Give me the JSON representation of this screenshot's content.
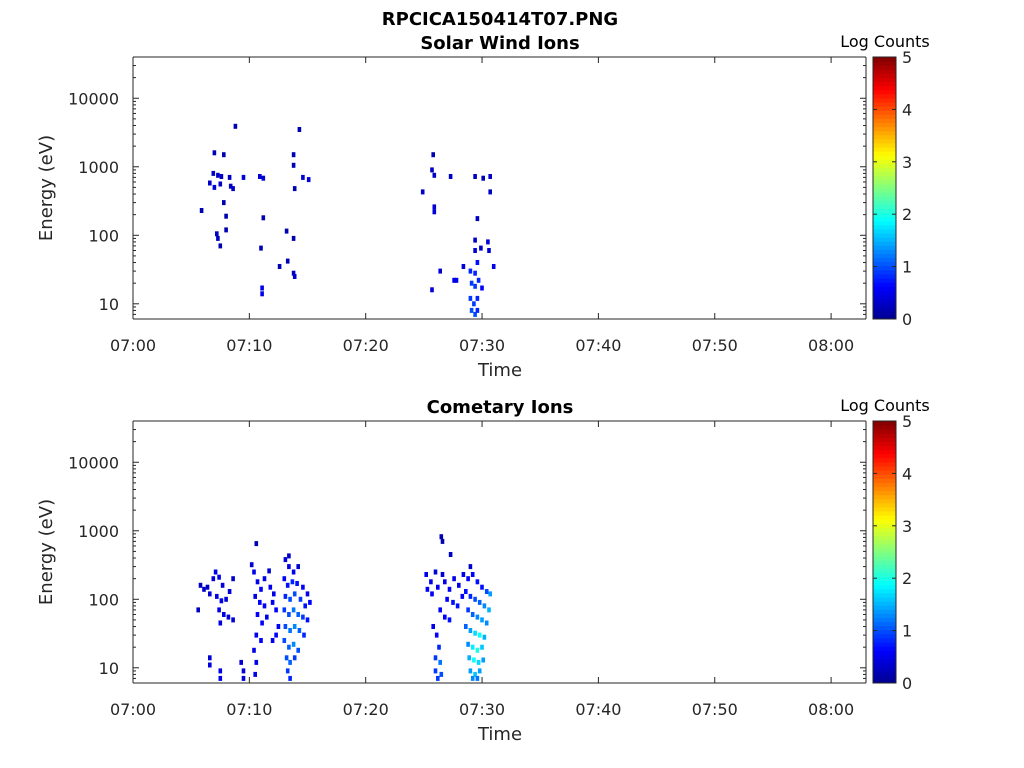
{
  "figure_title": "RPCICA150414T07.PNG",
  "colorscale": [
    "#00008f",
    "#0000ff",
    "#0080ff",
    "#00ffff",
    "#80ff80",
    "#ffff00",
    "#ff8000",
    "#ff0000",
    "#800000"
  ],
  "chart_data": [
    {
      "type": "heatmap",
      "title": "Solar Wind Ions",
      "xlabel": "Time",
      "ylabel": "Energy (eV)",
      "x_range_minutes": [
        0,
        63
      ],
      "x_ticks": [
        "07:00",
        "07:10",
        "07:20",
        "07:30",
        "07:40",
        "07:50",
        "08:00"
      ],
      "y_scale": "log",
      "y_range": [
        6,
        40000
      ],
      "y_ticks": [
        "10",
        "100",
        "1000",
        "10000"
      ],
      "colorbar": {
        "label": "Log Counts",
        "range": [
          0,
          5
        ],
        "ticks": [
          "0",
          "1",
          "2",
          "3",
          "4",
          "5"
        ]
      },
      "cells": [
        [
          8.8,
          3900,
          0.2
        ],
        [
          14.3,
          3500,
          0.2
        ],
        [
          7.0,
          1600,
          0.2
        ],
        [
          7.8,
          1500,
          0.2
        ],
        [
          13.8,
          1500,
          0.2
        ],
        [
          13.8,
          1050,
          0.2
        ],
        [
          6.9,
          800,
          0.3
        ],
        [
          7.3,
          750,
          0.3
        ],
        [
          7.6,
          720,
          0.3
        ],
        [
          8.3,
          700,
          0.3
        ],
        [
          9.5,
          700,
          0.4
        ],
        [
          10.9,
          720,
          0.4
        ],
        [
          11.2,
          680,
          0.4
        ],
        [
          14.6,
          700,
          0.4
        ],
        [
          15.1,
          650,
          0.4
        ],
        [
          6.6,
          580,
          0.3
        ],
        [
          7.5,
          560,
          0.3
        ],
        [
          7.0,
          500,
          0.4
        ],
        [
          8.4,
          520,
          0.3
        ],
        [
          8.6,
          480,
          0.3
        ],
        [
          13.9,
          480,
          0.2
        ],
        [
          7.8,
          300,
          0.2
        ],
        [
          5.9,
          230,
          0.2
        ],
        [
          8.0,
          190,
          0.2
        ],
        [
          11.2,
          180,
          0.2
        ],
        [
          7.2,
          105,
          0.3
        ],
        [
          7.3,
          90,
          0.3
        ],
        [
          7.5,
          70,
          0.2
        ],
        [
          8.0,
          120,
          0.2
        ],
        [
          13.2,
          115,
          0.2
        ],
        [
          13.8,
          90,
          0.2
        ],
        [
          11.0,
          65,
          0.2
        ],
        [
          13.3,
          42,
          0.2
        ],
        [
          12.6,
          35,
          0.2
        ],
        [
          13.8,
          28,
          0.3
        ],
        [
          13.9,
          25,
          0.3
        ],
        [
          11.1,
          17,
          0.5
        ],
        [
          11.1,
          14,
          0.5
        ],
        [
          25.8,
          1500,
          0.2
        ],
        [
          25.7,
          900,
          0.3
        ],
        [
          25.9,
          750,
          0.3
        ],
        [
          27.3,
          720,
          0.3
        ],
        [
          29.4,
          720,
          0.3
        ],
        [
          30.1,
          680,
          0.2
        ],
        [
          30.7,
          720,
          0.3
        ],
        [
          24.9,
          430,
          0.3
        ],
        [
          30.7,
          430,
          0.3
        ],
        [
          25.9,
          260,
          0.4
        ],
        [
          25.9,
          220,
          0.4
        ],
        [
          29.6,
          175,
          0.3
        ],
        [
          29.4,
          85,
          0.3
        ],
        [
          29.4,
          60,
          0.4
        ],
        [
          29.9,
          65,
          0.3
        ],
        [
          30.5,
          80,
          0.4
        ],
        [
          30.6,
          60,
          0.4
        ],
        [
          29.6,
          40,
          0.7
        ],
        [
          31.0,
          35,
          0.5
        ],
        [
          29.0,
          30,
          0.8
        ],
        [
          29.4,
          28,
          0.8
        ],
        [
          28.4,
          35,
          0.4
        ],
        [
          26.4,
          30,
          0.4
        ],
        [
          27.6,
          22,
          0.5
        ],
        [
          27.8,
          22,
          0.5
        ],
        [
          25.7,
          16,
          0.4
        ],
        [
          29.1,
          20,
          0.9
        ],
        [
          29.4,
          18,
          0.9
        ],
        [
          29.7,
          22,
          0.8
        ],
        [
          30.0,
          17,
          0.6
        ],
        [
          29.0,
          12,
          0.9
        ],
        [
          29.3,
          10,
          0.9
        ],
        [
          29.6,
          12,
          0.8
        ],
        [
          29.1,
          8,
          1.0
        ],
        [
          29.4,
          7,
          1.0
        ],
        [
          29.6,
          8,
          0.8
        ]
      ]
    },
    {
      "type": "heatmap",
      "title": "Cometary Ions",
      "xlabel": "Time",
      "ylabel": "Energy (eV)",
      "x_range_minutes": [
        0,
        63
      ],
      "x_ticks": [
        "07:00",
        "07:10",
        "07:20",
        "07:30",
        "07:40",
        "07:50",
        "08:00"
      ],
      "y_scale": "log",
      "y_range": [
        6,
        40000
      ],
      "y_ticks": [
        "10",
        "100",
        "1000",
        "10000"
      ],
      "colorbar": {
        "label": "Log Counts",
        "range": [
          0,
          5
        ],
        "ticks": [
          "0",
          "1",
          "2",
          "3",
          "4",
          "5"
        ]
      },
      "cells": [
        [
          10.6,
          650,
          0.2
        ],
        [
          13.4,
          430,
          0.3
        ],
        [
          26.5,
          820,
          0.2
        ],
        [
          26.6,
          700,
          0.2
        ],
        [
          27.3,
          450,
          0.3
        ],
        [
          29.0,
          300,
          0.3
        ],
        [
          5.8,
          160,
          0.3
        ],
        [
          6.1,
          140,
          0.3
        ],
        [
          6.4,
          150,
          0.3
        ],
        [
          6.9,
          200,
          0.4
        ],
        [
          7.1,
          250,
          0.5
        ],
        [
          7.4,
          210,
          0.5
        ],
        [
          7.7,
          160,
          0.4
        ],
        [
          6.6,
          120,
          0.4
        ],
        [
          7.2,
          110,
          0.5
        ],
        [
          7.6,
          95,
          0.5
        ],
        [
          8.0,
          100,
          0.4
        ],
        [
          8.3,
          130,
          0.4
        ],
        [
          8.6,
          200,
          0.3
        ],
        [
          7.4,
          70,
          0.5
        ],
        [
          7.8,
          60,
          0.5
        ],
        [
          8.2,
          55,
          0.4
        ],
        [
          8.6,
          50,
          0.4
        ],
        [
          5.6,
          70,
          0.3
        ],
        [
          7.5,
          45,
          0.4
        ],
        [
          6.6,
          14,
          0.4
        ],
        [
          6.6,
          11,
          0.4
        ],
        [
          7.5,
          9,
          0.5
        ],
        [
          7.5,
          7,
          0.5
        ],
        [
          9.3,
          12,
          0.4
        ],
        [
          9.5,
          9,
          0.4
        ],
        [
          9.5,
          7,
          0.4
        ],
        [
          10.2,
          320,
          0.4
        ],
        [
          10.4,
          250,
          0.5
        ],
        [
          10.7,
          180,
          0.5
        ],
        [
          11.0,
          140,
          0.6
        ],
        [
          11.3,
          200,
          0.5
        ],
        [
          11.7,
          260,
          0.4
        ],
        [
          10.5,
          110,
          0.5
        ],
        [
          10.9,
          90,
          0.6
        ],
        [
          11.3,
          80,
          0.6
        ],
        [
          11.8,
          150,
          0.5
        ],
        [
          12.1,
          120,
          0.5
        ],
        [
          10.7,
          60,
          0.6
        ],
        [
          11.1,
          45,
          0.6
        ],
        [
          11.5,
          55,
          0.5
        ],
        [
          12.0,
          90,
          0.5
        ],
        [
          12.3,
          70,
          0.6
        ],
        [
          10.6,
          30,
          0.5
        ],
        [
          11.0,
          25,
          0.6
        ],
        [
          12.5,
          40,
          0.6
        ],
        [
          10.4,
          18,
          0.5
        ],
        [
          10.6,
          12,
          0.5
        ],
        [
          10.5,
          8,
          0.5
        ],
        [
          12.0,
          25,
          0.5
        ],
        [
          12.3,
          30,
          0.6
        ],
        [
          13.1,
          380,
          0.4
        ],
        [
          13.4,
          300,
          0.5
        ],
        [
          13.8,
          250,
          0.5
        ],
        [
          14.2,
          300,
          0.4
        ],
        [
          13.0,
          200,
          0.6
        ],
        [
          13.3,
          160,
          0.7
        ],
        [
          13.7,
          180,
          0.8
        ],
        [
          14.1,
          170,
          0.7
        ],
        [
          14.6,
          150,
          0.6
        ],
        [
          15.0,
          120,
          0.5
        ],
        [
          13.1,
          110,
          0.8
        ],
        [
          13.5,
          100,
          1.0
        ],
        [
          13.9,
          120,
          1.0
        ],
        [
          14.4,
          100,
          0.9
        ],
        [
          14.8,
          80,
          0.7
        ],
        [
          15.2,
          90,
          0.6
        ],
        [
          13.0,
          70,
          0.9
        ],
        [
          13.4,
          60,
          1.0
        ],
        [
          13.8,
          70,
          1.2
        ],
        [
          14.2,
          60,
          1.1
        ],
        [
          14.6,
          55,
          0.9
        ],
        [
          15.0,
          50,
          0.7
        ],
        [
          13.1,
          40,
          1.0
        ],
        [
          13.5,
          35,
          1.2
        ],
        [
          13.9,
          40,
          1.3
        ],
        [
          14.3,
          35,
          1.1
        ],
        [
          14.7,
          30,
          0.8
        ],
        [
          13.0,
          25,
          1.0
        ],
        [
          13.4,
          20,
          1.1
        ],
        [
          13.8,
          22,
          1.3
        ],
        [
          14.2,
          18,
          1.0
        ],
        [
          13.2,
          14,
          1.0
        ],
        [
          13.5,
          12,
          1.1
        ],
        [
          13.9,
          14,
          0.9
        ],
        [
          13.3,
          9,
          0.9
        ],
        [
          13.5,
          7,
          0.8
        ],
        [
          25.2,
          230,
          0.5
        ],
        [
          25.6,
          180,
          0.5
        ],
        [
          26.0,
          250,
          0.4
        ],
        [
          25.3,
          140,
          0.6
        ],
        [
          25.7,
          120,
          0.6
        ],
        [
          26.2,
          150,
          0.5
        ],
        [
          26.6,
          230,
          0.4
        ],
        [
          26.8,
          180,
          0.5
        ],
        [
          27.2,
          140,
          0.6
        ],
        [
          27.6,
          200,
          0.5
        ],
        [
          28.0,
          160,
          0.5
        ],
        [
          27.0,
          100,
          0.6
        ],
        [
          27.5,
          90,
          0.7
        ],
        [
          27.9,
          80,
          0.7
        ],
        [
          28.3,
          110,
          0.6
        ],
        [
          26.4,
          70,
          0.6
        ],
        [
          26.8,
          55,
          0.6
        ],
        [
          27.2,
          50,
          0.7
        ],
        [
          25.8,
          40,
          0.5
        ],
        [
          26.1,
          30,
          0.6
        ],
        [
          26.3,
          20,
          0.8
        ],
        [
          26.0,
          14,
          0.9
        ],
        [
          26.4,
          12,
          1.2
        ],
        [
          26.0,
          9,
          0.9
        ],
        [
          26.5,
          8,
          1.0
        ],
        [
          26.2,
          7,
          0.9
        ],
        [
          28.4,
          230,
          0.5
        ],
        [
          28.8,
          200,
          0.6
        ],
        [
          29.2,
          230,
          0.6
        ],
        [
          29.6,
          180,
          0.7
        ],
        [
          30.0,
          150,
          0.7
        ],
        [
          30.4,
          130,
          1.0
        ],
        [
          30.7,
          120,
          1.4
        ],
        [
          28.6,
          130,
          0.7
        ],
        [
          29.0,
          110,
          0.8
        ],
        [
          29.4,
          100,
          1.0
        ],
        [
          29.8,
          90,
          1.1
        ],
        [
          30.2,
          80,
          1.3
        ],
        [
          30.6,
          70,
          1.5
        ],
        [
          28.8,
          70,
          0.9
        ],
        [
          29.2,
          60,
          1.1
        ],
        [
          29.6,
          55,
          1.3
        ],
        [
          30.0,
          50,
          1.4
        ],
        [
          30.4,
          45,
          1.3
        ],
        [
          28.6,
          40,
          1.1
        ],
        [
          29.0,
          35,
          1.4
        ],
        [
          29.4,
          32,
          1.7
        ],
        [
          29.8,
          30,
          1.9
        ],
        [
          30.2,
          28,
          1.5
        ],
        [
          28.8,
          22,
          1.3
        ],
        [
          29.2,
          20,
          1.8
        ],
        [
          29.6,
          18,
          2.0
        ],
        [
          30.0,
          20,
          1.6
        ],
        [
          28.9,
          14,
          1.5
        ],
        [
          29.3,
          13,
          1.9
        ],
        [
          29.7,
          12,
          1.7
        ],
        [
          30.1,
          13,
          1.4
        ],
        [
          29.0,
          9,
          1.4
        ],
        [
          29.4,
          8,
          1.6
        ],
        [
          29.8,
          9,
          1.4
        ],
        [
          29.2,
          7,
          1.3
        ],
        [
          29.6,
          7,
          1.2
        ]
      ]
    }
  ]
}
